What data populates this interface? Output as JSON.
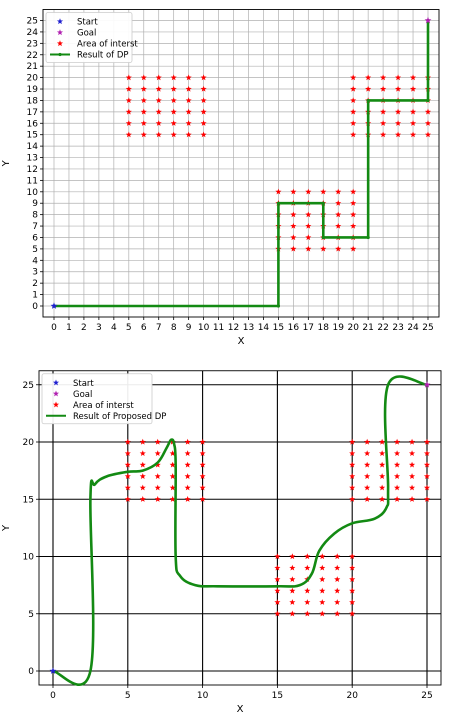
{
  "chart_data": [
    {
      "type": "scatter",
      "xlabel": "X",
      "ylabel": "Y",
      "xlim": [
        0,
        25
      ],
      "ylim": [
        0,
        25
      ],
      "xticks": [
        0,
        1,
        2,
        3,
        4,
        5,
        6,
        7,
        8,
        9,
        10,
        11,
        12,
        13,
        14,
        15,
        16,
        17,
        18,
        19,
        20,
        21,
        22,
        23,
        24,
        25
      ],
      "yticks": [
        0,
        1,
        2,
        3,
        4,
        5,
        6,
        7,
        8,
        9,
        10,
        11,
        12,
        13,
        14,
        15,
        16,
        17,
        18,
        19,
        20,
        21,
        22,
        23,
        24,
        25
      ],
      "grid": "fine",
      "legend_position": "top-left",
      "legend": [
        "Start",
        "Goal",
        "Area of interst",
        "Result of DP"
      ],
      "start": [
        0,
        0
      ],
      "goal": [
        25,
        25
      ],
      "areas": [
        {
          "x": [
            5,
            10
          ],
          "y": [
            15,
            20
          ],
          "step": 1
        },
        {
          "x": [
            15,
            20
          ],
          "y": [
            5,
            10
          ],
          "step": 1
        },
        {
          "x": [
            20,
            25
          ],
          "y": [
            15,
            20
          ],
          "step": 1
        }
      ],
      "path": [
        [
          0,
          0
        ],
        [
          15,
          0
        ],
        [
          15,
          9
        ],
        [
          18,
          9
        ],
        [
          18,
          6
        ],
        [
          21,
          6
        ],
        [
          21,
          18
        ],
        [
          25,
          18
        ],
        [
          25,
          25
        ]
      ],
      "colors": {
        "start": "#1f1fd0",
        "goal": "#b020b0",
        "area": "#ff0000",
        "path": "#138a13",
        "grid": "#b0b0b0"
      }
    },
    {
      "type": "scatter",
      "xlabel": "X",
      "ylabel": "Y",
      "xlim": [
        0,
        25
      ],
      "ylim": [
        0,
        25
      ],
      "xticks": [
        0,
        5,
        10,
        15,
        20,
        25
      ],
      "yticks": [
        0,
        5,
        10,
        15,
        20,
        25
      ],
      "grid": "coarse",
      "legend_position": "top-left",
      "legend": [
        "Start",
        "Goal",
        "Area of interst",
        "Result of Proposed DP"
      ],
      "start": [
        0,
        0
      ],
      "goal": [
        25,
        25
      ],
      "areas": [
        {
          "x": [
            5,
            10
          ],
          "y": [
            15,
            20
          ],
          "step": 1
        },
        {
          "x": [
            15,
            20
          ],
          "y": [
            5,
            10
          ],
          "step": 1
        },
        {
          "x": [
            20,
            25
          ],
          "y": [
            15,
            20
          ],
          "step": 1
        }
      ],
      "path": [
        [
          0,
          0
        ],
        [
          2.5,
          0
        ],
        [
          2.5,
          15
        ],
        [
          2.8,
          16.3
        ],
        [
          3.6,
          17
        ],
        [
          5,
          17.4
        ],
        [
          6,
          17.5
        ],
        [
          7,
          18.2
        ],
        [
          7.6,
          19.5
        ],
        [
          7.9,
          20.2
        ],
        [
          8.1,
          19.8
        ],
        [
          8.2,
          18
        ],
        [
          8.2,
          10
        ],
        [
          8.5,
          8.3
        ],
        [
          9.5,
          7.5
        ],
        [
          11,
          7.4
        ],
        [
          15,
          7.4
        ],
        [
          16.5,
          7.5
        ],
        [
          17.3,
          8.5
        ],
        [
          17.8,
          10.5
        ],
        [
          18.8,
          12
        ],
        [
          20,
          12.9
        ],
        [
          21.5,
          13.3
        ],
        [
          22.3,
          14.3
        ],
        [
          22.4,
          16
        ],
        [
          22.4,
          25
        ],
        [
          25,
          25
        ]
      ],
      "colors": {
        "start": "#1f1fd0",
        "goal": "#b020b0",
        "area": "#ff0000",
        "path": "#138a13",
        "grid": "#000000"
      }
    }
  ]
}
